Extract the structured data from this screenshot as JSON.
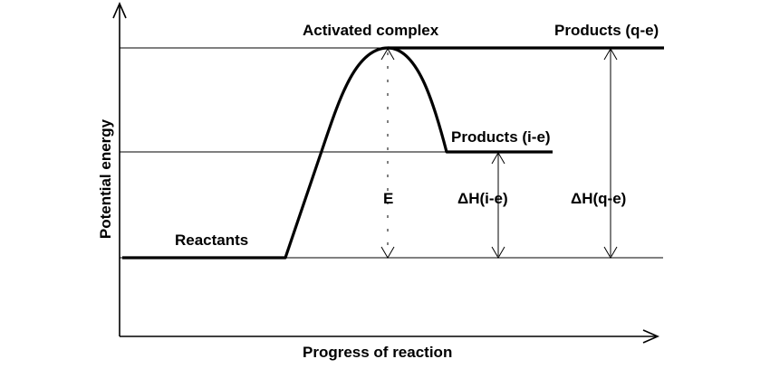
{
  "axes": {
    "y_label": "Potential energy",
    "x_label": "Progress of reaction"
  },
  "labels": {
    "activated_complex": "Activated complex",
    "products_qe": "Products (q-e)",
    "products_ie": "Products (i-e)",
    "reactants": "Reactants",
    "activation_energy": "E",
    "delta_h_ie": "ΔH(i-e)",
    "delta_h_qe": "ΔH(q-e)"
  }
}
